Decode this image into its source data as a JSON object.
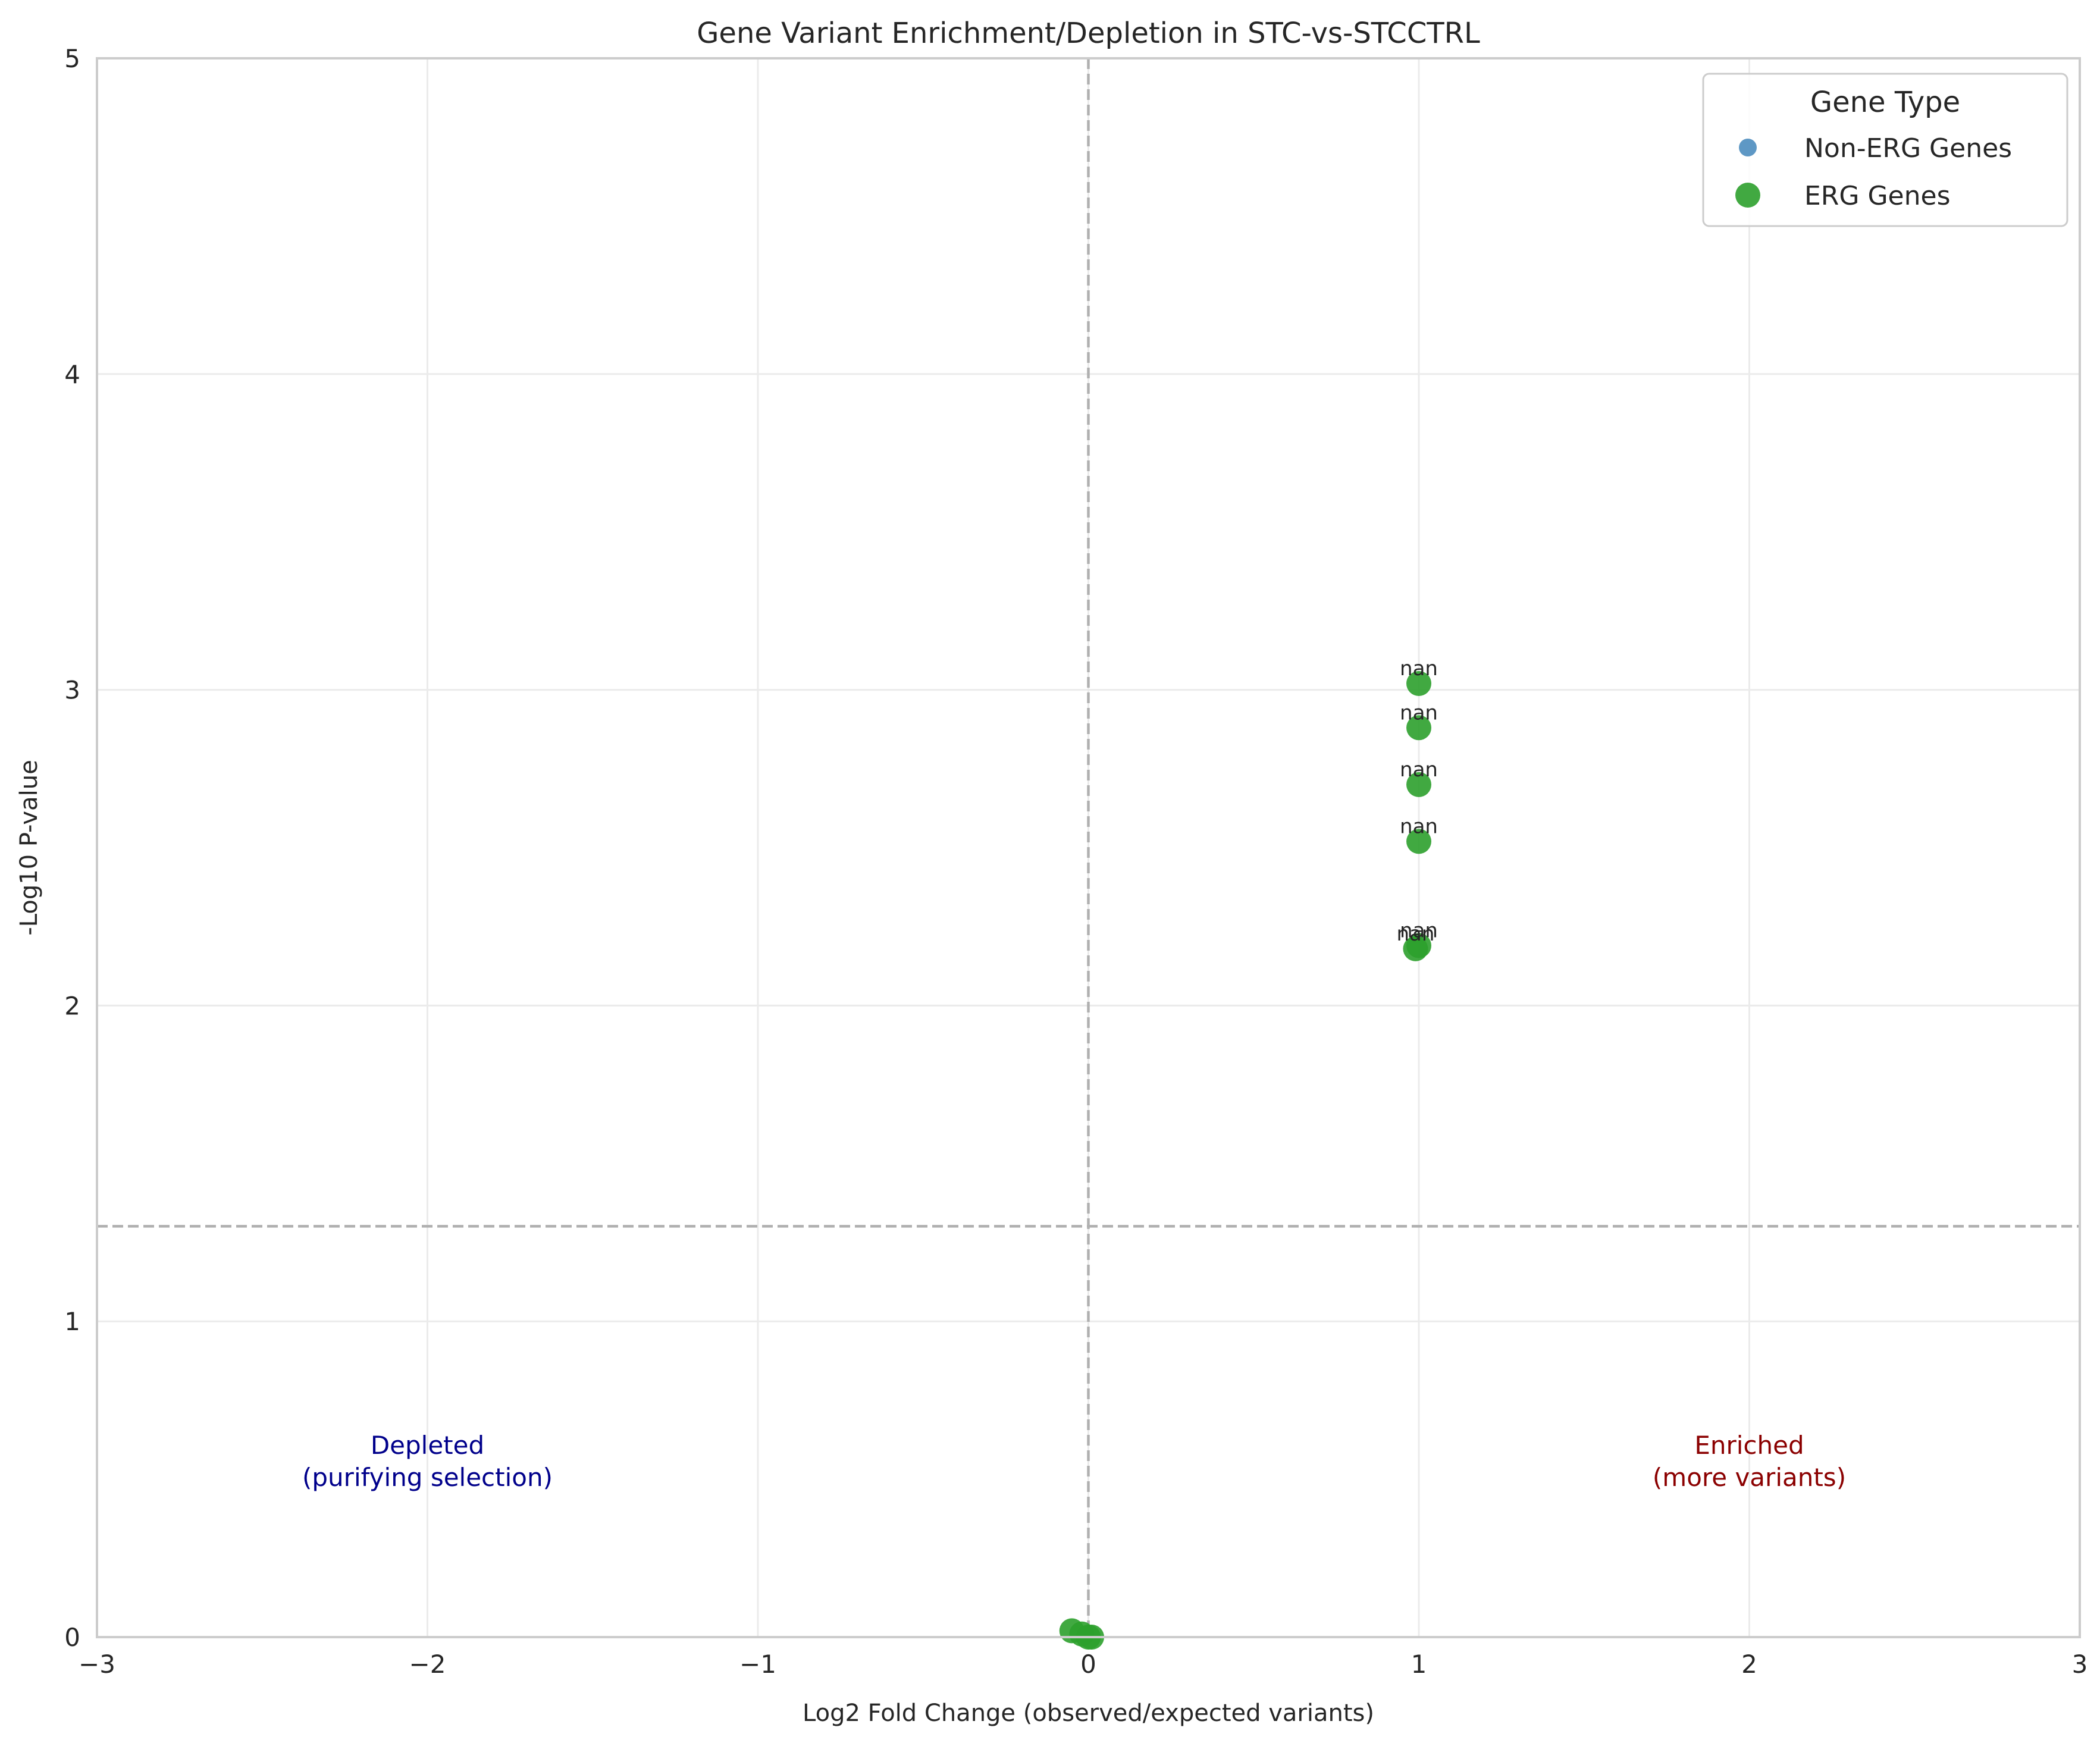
{
  "chart_data": {
    "type": "scatter",
    "title": "Gene Variant Enrichment/Depletion in STC-vs-STCCTRL",
    "xlabel": "Log2 Fold Change (observed/expected variants)",
    "ylabel": "-Log10 P-value",
    "xlim": [
      -3,
      3
    ],
    "ylim": [
      0,
      5
    ],
    "xticks": [
      -3,
      -2,
      -1,
      0,
      1,
      2,
      3
    ],
    "xtick_labels": [
      "−3",
      "−2",
      "−1",
      "0",
      "1",
      "2",
      "3"
    ],
    "yticks": [
      0,
      1,
      2,
      3,
      4,
      5
    ],
    "ytick_labels": [
      "0",
      "1",
      "2",
      "3",
      "4",
      "5"
    ],
    "grid": true,
    "reference_lines": {
      "vertical_x": 0,
      "horizontal_y": 1.301,
      "color": "#b0b0b0"
    },
    "legend": {
      "title": "Gene Type",
      "placement": "top-right",
      "entries": [
        "Non-ERG Genes",
        "ERG Genes"
      ]
    },
    "series": [
      {
        "name": "Non-ERG Genes",
        "color": "#4c8dbf",
        "points": []
      },
      {
        "name": "ERG Genes",
        "color": "#2ca02c",
        "points": [
          {
            "x": 1.0,
            "y": 3.02,
            "label": "nan"
          },
          {
            "x": 1.0,
            "y": 2.88,
            "label": "nan"
          },
          {
            "x": 1.0,
            "y": 2.7,
            "label": "nan"
          },
          {
            "x": 1.0,
            "y": 2.52,
            "label": "nan"
          },
          {
            "x": 0.99,
            "y": 2.18,
            "label": "nan"
          },
          {
            "x": 1.0,
            "y": 2.19,
            "label": "nan"
          },
          {
            "x": -0.05,
            "y": 0.02
          },
          {
            "x": -0.02,
            "y": 0.01
          },
          {
            "x": 0.0,
            "y": 0.0
          },
          {
            "x": 0.01,
            "y": 0.0
          }
        ]
      }
    ],
    "annotations": [
      {
        "lines": [
          "Depleted",
          "(purifying selection)"
        ],
        "x": -2,
        "y": 0.58,
        "color": "#00008b"
      },
      {
        "lines": [
          "Enriched",
          "(more variants)"
        ],
        "x": 2,
        "y": 0.58,
        "color": "#8b0000"
      }
    ]
  }
}
